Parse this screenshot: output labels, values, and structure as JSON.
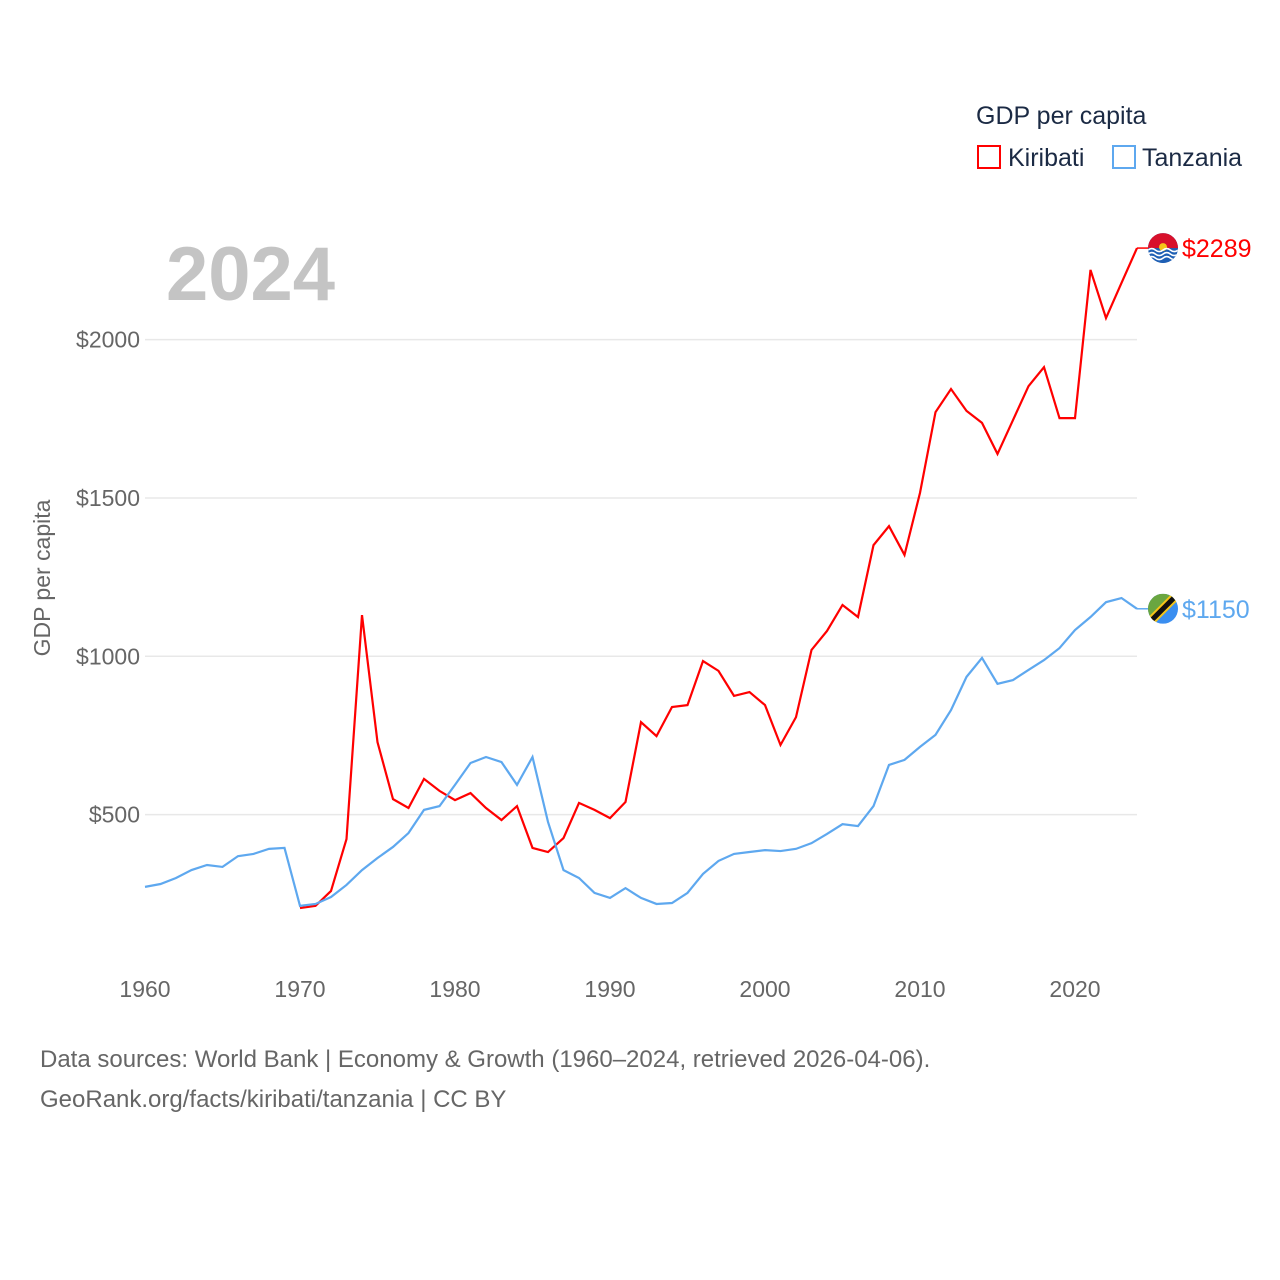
{
  "chart_data": {
    "type": "line",
    "year_label": "2024",
    "ylabel": "GDP per capita",
    "legend": {
      "title": "GDP per capita",
      "position": "top-right"
    },
    "ylim": [
      0,
      2300
    ],
    "xlim": [
      1960,
      2024
    ],
    "yticks": [
      {
        "value": 500,
        "label": "$500"
      },
      {
        "value": 1000,
        "label": "$1000"
      },
      {
        "value": 1500,
        "label": "$1500"
      },
      {
        "value": 2000,
        "label": "$2000"
      }
    ],
    "xticks": [
      {
        "value": 1960,
        "label": "1960"
      },
      {
        "value": 1970,
        "label": "1970"
      },
      {
        "value": 1980,
        "label": "1980"
      },
      {
        "value": 1990,
        "label": "1990"
      },
      {
        "value": 2000,
        "label": "2000"
      },
      {
        "value": 2010,
        "label": "2010"
      },
      {
        "value": 2020,
        "label": "2020"
      }
    ],
    "grid": true,
    "series": [
      {
        "name": "Kiribati",
        "color": "#ff0000",
        "end_label": "$2289",
        "start_year": 1970,
        "values": [
          205,
          212,
          259,
          423,
          1130,
          729,
          549,
          521,
          613,
          575,
          546,
          568,
          521,
          483,
          527,
          395,
          382,
          426,
          537,
          515,
          489,
          540,
          792,
          748,
          840,
          846,
          985,
          954,
          875,
          887,
          846,
          720,
          808,
          1020,
          1080,
          1162,
          1124,
          1351,
          1411,
          1320,
          1516,
          1771,
          1844,
          1775,
          1737,
          1639,
          1746,
          1853,
          1913,
          1752,
          1752,
          2220,
          2068,
          2179,
          2289
        ]
      },
      {
        "name": "Tanzania",
        "color": "#5ea8ef",
        "end_label": "$1150",
        "start_year": 1960,
        "values": [
          272,
          281,
          300,
          325,
          341,
          335,
          369,
          376,
          392,
          395,
          212,
          218,
          240,
          278,
          325,
          363,
          398,
          442,
          515,
          527,
          594,
          663,
          682,
          666,
          594,
          682,
          477,
          325,
          300,
          253,
          237,
          268,
          237,
          218,
          221,
          253,
          313,
          354,
          376,
          382,
          388,
          385,
          392,
          410,
          439,
          470,
          464,
          527,
          657,
          673,
          714,
          752,
          830,
          935,
          995,
          913,
          925,
          957,
          988,
          1026,
          1083,
          1124,
          1171,
          1184,
          1150
        ]
      }
    ]
  },
  "footer": {
    "line1": "Data sources: World Bank | Economy & Growth (1960–2024, retrieved 2026-04-06).",
    "line2": "GeoRank.org/facts/kiribati/tanzania | CC BY"
  }
}
